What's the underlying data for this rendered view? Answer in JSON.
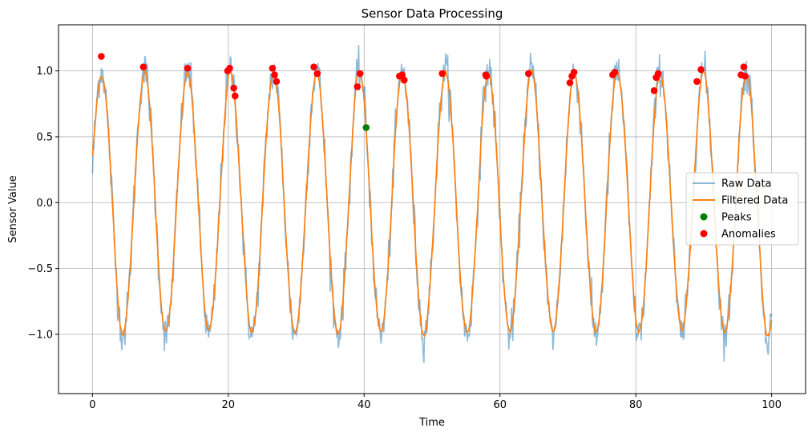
{
  "chart_data": {
    "type": "line",
    "title": "Sensor Data Processing",
    "xlabel": "Time",
    "ylabel": "Sensor Value",
    "xlim": [
      -5,
      105
    ],
    "ylim": [
      -1.45,
      1.35
    ],
    "x_ticks": [
      0,
      20,
      40,
      60,
      80,
      100
    ],
    "x_tick_labels": [
      "0",
      "20",
      "40",
      "60",
      "80",
      "100"
    ],
    "y_ticks": [
      -1.0,
      -0.5,
      0.0,
      0.5,
      1.0
    ],
    "y_tick_labels": [
      "−1.0",
      "−0.5",
      "0.0",
      "0.5",
      "1.0"
    ],
    "grid": true,
    "legend_position": "center-right",
    "signal": {
      "period": 6.33,
      "amplitude": 1.0,
      "phase_deg": 14,
      "x_start": 0,
      "x_end": 100
    },
    "series": [
      {
        "name": "Raw Data",
        "kind": "line",
        "color": "#1f77b4",
        "opacity": 0.5
      },
      {
        "name": "Filtered Data",
        "kind": "line",
        "color": "#ff7f0e"
      },
      {
        "name": "Peaks",
        "kind": "scatter",
        "color": "#008000",
        "x": [
          40.3
        ],
        "y": [
          0.57
        ]
      },
      {
        "name": "Anomalies",
        "kind": "scatter",
        "color": "#ff0000",
        "x": [
          1.3,
          7.5,
          14.0,
          19.9,
          20.2,
          20.8,
          21.0,
          26.5,
          26.8,
          27.1,
          32.6,
          33.1,
          39.0,
          39.4,
          45.2,
          45.6,
          45.9,
          51.5,
          57.9,
          58.0,
          64.2,
          70.3,
          70.6,
          70.9,
          76.6,
          76.9,
          82.7,
          83.0,
          83.3,
          89.0,
          89.6,
          95.5,
          95.9,
          96.1
        ],
        "y": [
          1.11,
          1.03,
          1.02,
          1.0,
          1.02,
          0.87,
          0.81,
          1.02,
          0.97,
          0.92,
          1.03,
          0.98,
          0.88,
          0.98,
          0.96,
          0.97,
          0.93,
          0.98,
          0.97,
          0.96,
          0.98,
          0.91,
          0.96,
          0.99,
          0.97,
          0.99,
          0.85,
          0.95,
          0.98,
          0.92,
          1.01,
          0.97,
          1.03,
          0.96
        ]
      }
    ]
  }
}
